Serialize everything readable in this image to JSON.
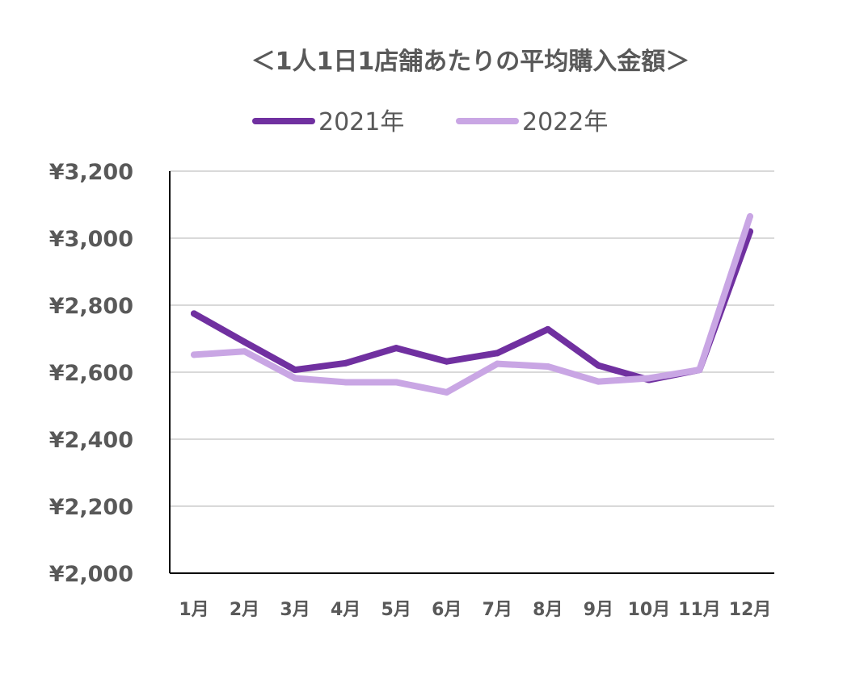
{
  "chart_data": {
    "type": "line",
    "title": "＜1人1日1店舗あたりの平均購入金額＞",
    "categories": [
      "1月",
      "2月",
      "3月",
      "4月",
      "5月",
      "6月",
      "7月",
      "8月",
      "9月",
      "10月",
      "11月",
      "12月"
    ],
    "series": [
      {
        "name": "2021年",
        "color": "#7030a0",
        "values": [
          2775,
          2690,
          2607,
          2627,
          2672,
          2632,
          2657,
          2728,
          2620,
          2577,
          2607,
          3020
        ]
      },
      {
        "name": "2022年",
        "color": "#c9a6e4",
        "values": [
          2652,
          2662,
          2582,
          2570,
          2570,
          2540,
          2625,
          2617,
          2572,
          2582,
          2607,
          3065
        ]
      }
    ],
    "ylim": [
      2000,
      3200
    ],
    "yticks": [
      2000,
      2200,
      2400,
      2600,
      2800,
      3000,
      3200
    ],
    "ytick_labels": [
      "¥2,000",
      "¥2,200",
      "¥2,400",
      "¥2,600",
      "¥2,800",
      "¥3,000",
      "¥3,200"
    ],
    "grid": true,
    "legend_position": "top"
  }
}
